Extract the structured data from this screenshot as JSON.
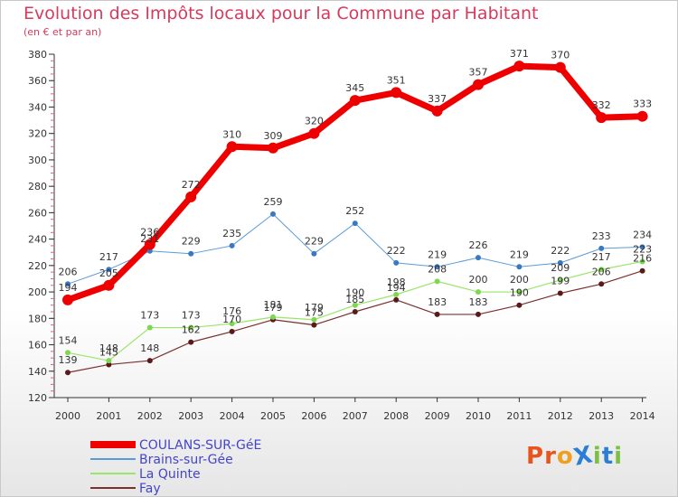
{
  "title": "Evolution des Impôts locaux pour la Commune par Habitant",
  "subtitle": "(en € et par an)",
  "logo": {
    "text": "ProXiti",
    "letters": [
      {
        "ch": "P",
        "color": "#e8541e"
      },
      {
        "ch": "r",
        "color": "#e8541e"
      },
      {
        "ch": "o",
        "color": "#f0a020"
      },
      {
        "ch": "X",
        "color": "#2a7fd4"
      },
      {
        "ch": "i",
        "color": "#7ac143"
      },
      {
        "ch": "t",
        "color": "#2a7fd4"
      },
      {
        "ch": "i",
        "color": "#7ac143"
      }
    ]
  },
  "chart_data": {
    "type": "line",
    "title": "Evolution des Impôts locaux pour la Commune par Habitant",
    "subtitle": "(en € et par an)",
    "xlabel": "",
    "ylabel": "",
    "x": [
      "2000",
      "2001",
      "2002",
      "2003",
      "2004",
      "2005",
      "2006",
      "2007",
      "2008",
      "2009",
      "2010",
      "2011",
      "2012",
      "2013",
      "2014"
    ],
    "ylim": [
      120,
      380
    ],
    "yticks": [
      "120",
      "140",
      "160",
      "180",
      "200",
      "220",
      "240",
      "260",
      "280",
      "300",
      "320",
      "340",
      "360",
      "380"
    ],
    "grid": false,
    "legend_position": "bottom-left",
    "series": [
      {
        "name": "COULANS-SUR-GéE",
        "color": "#ee0000",
        "marker": "#ee0000",
        "label_color": "#4444cc",
        "values": [
          194,
          205,
          236,
          272,
          310,
          309,
          320,
          345,
          351,
          337,
          357,
          371,
          370,
          332,
          333
        ],
        "labels": [
          "194",
          "205",
          "236",
          "272",
          "310",
          "309",
          "320",
          "345",
          "351",
          "337",
          "357",
          "371",
          "370",
          "332",
          "333"
        ]
      },
      {
        "name": "Brains-sur-Gée",
        "color": "#5b9bd5",
        "marker": "#3a78c2",
        "label_color": "#4444cc",
        "values": [
          206,
          217,
          231,
          229,
          235,
          259,
          229,
          252,
          222,
          219,
          226,
          219,
          222,
          233,
          234
        ],
        "labels": [
          "206",
          "217",
          "231",
          "229",
          "235",
          "259",
          "229",
          "252",
          "222",
          "219",
          "226",
          "219",
          "222",
          "233",
          "234"
        ]
      },
      {
        "name": "La Quinte",
        "color": "#99e66a",
        "marker": "#7fd650",
        "label_color": "#4444cc",
        "values": [
          154,
          148,
          173,
          173,
          176,
          181,
          179,
          190,
          198,
          208,
          200,
          200,
          209,
          217,
          223
        ],
        "labels": [
          "154",
          "148",
          "173",
          "173",
          "176",
          "181",
          "179",
          "190",
          "198",
          "208",
          "200",
          "200",
          "209",
          "217",
          "223"
        ]
      },
      {
        "name": "Fay",
        "color": "#7a3030",
        "marker": "#5a1a1a",
        "label_color": "#4444cc",
        "values": [
          139,
          145,
          148,
          162,
          170,
          179,
          175,
          185,
          194,
          183,
          183,
          190,
          199,
          206,
          216
        ],
        "labels": [
          "139",
          "145",
          "148",
          "162",
          "170",
          "179",
          "175",
          "185",
          "194",
          "183",
          "183",
          "190",
          "199",
          "206",
          "216"
        ]
      }
    ]
  }
}
